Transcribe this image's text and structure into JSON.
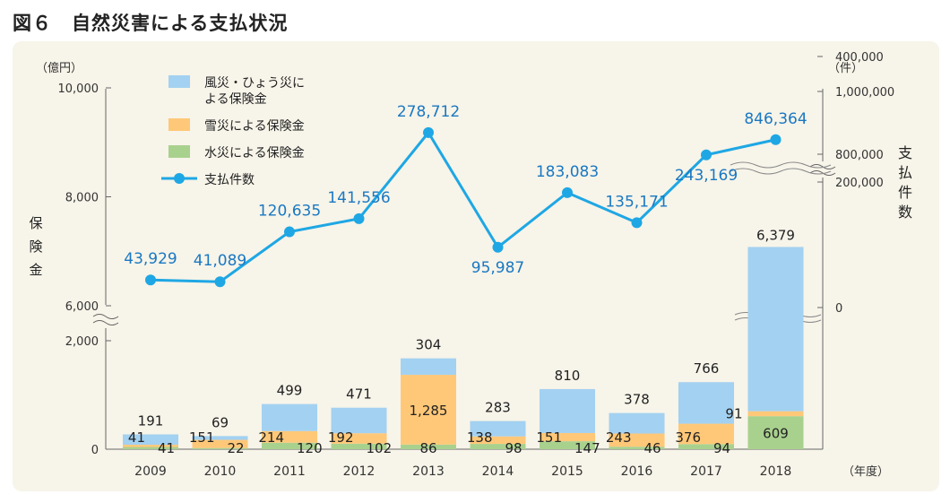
{
  "title": "図６　自然災害による支払状況",
  "chart_data": {
    "type": "bar",
    "categories": [
      "2009",
      "2010",
      "2011",
      "2012",
      "2013",
      "2014",
      "2015",
      "2016",
      "2017",
      "2018"
    ],
    "series": [
      {
        "name": "水災による保険金",
        "type": "bar",
        "color": "#a9d18e",
        "values": [
          41,
          22,
          120,
          102,
          86,
          98,
          147,
          46,
          94,
          609
        ]
      },
      {
        "name": "雪災による保険金",
        "type": "bar",
        "color": "#ffc878",
        "values": [
          41,
          151,
          214,
          192,
          1285,
          138,
          151,
          243,
          376,
          91
        ]
      },
      {
        "name": "風災・ひょう災による保険金",
        "type": "bar",
        "color": "#a3d1f1",
        "values": [
          191,
          69,
          499,
          471,
          304,
          283,
          810,
          378,
          766,
          6379
        ]
      },
      {
        "name": "支払件数",
        "type": "line",
        "color": "#1ea7e4",
        "values": [
          43929,
          41089,
          120635,
          141556,
          278712,
          95987,
          183083,
          135171,
          243169,
          846364
        ]
      }
    ],
    "bar_labels": [
      {
        "blue": "191",
        "orange": "41",
        "green": "41"
      },
      {
        "blue": "69",
        "orange": "151",
        "green": "22"
      },
      {
        "blue": "499",
        "orange": "214",
        "green": "120"
      },
      {
        "blue": "471",
        "orange": "192",
        "green": "102"
      },
      {
        "blue": "304",
        "orange": "1,285",
        "green": "86"
      },
      {
        "blue": "283",
        "orange": "138",
        "green": "98"
      },
      {
        "blue": "810",
        "orange": "151",
        "green": "147"
      },
      {
        "blue": "378",
        "orange": "243",
        "green": "46"
      },
      {
        "blue": "766",
        "orange": "376",
        "green": "94"
      },
      {
        "blue": "6,379",
        "orange": "91",
        "green": "609"
      }
    ],
    "line_labels": [
      "43,929",
      "41,089",
      "120,635",
      "141,556",
      "278,712",
      "95,987",
      "183,083",
      "135,171",
      "243,169",
      "846,364"
    ],
    "left_axis": {
      "label": "保険金",
      "unit": "（億円）",
      "ticks": [
        {
          "value": 0,
          "label": "0"
        },
        {
          "value": 2000,
          "label": "2,000"
        },
        {
          "value": 6000,
          "label": "6,000"
        },
        {
          "value": 8000,
          "label": "8,000"
        },
        {
          "value": 10000,
          "label": "10,000"
        }
      ],
      "break_between": [
        2000,
        6000
      ]
    },
    "right_axis": {
      "label": "支払件数",
      "unit": "（件）",
      "ticks": [
        {
          "value": 0,
          "label": "0"
        },
        {
          "value": 200000,
          "label": "200,000"
        },
        {
          "value": 400000,
          "label": "400,000"
        },
        {
          "value": 800000,
          "label": "800,000"
        },
        {
          "value": 1000000,
          "label": "1,000,000"
        }
      ],
      "break_between": [
        400000,
        800000
      ]
    },
    "x_unit": "（年度）",
    "legend": {
      "items": [
        {
          "label_lines": [
            "風災・ひょう災に",
            "よる保険金"
          ],
          "color": "#a3d1f1",
          "kind": "box"
        },
        {
          "label_lines": [
            "雪災による保険金"
          ],
          "color": "#ffc878",
          "kind": "box"
        },
        {
          "label_lines": [
            "水災による保険金"
          ],
          "color": "#a9d18e",
          "kind": "box"
        },
        {
          "label_lines": [
            "支払件数"
          ],
          "color": "#1ea7e4",
          "kind": "line"
        }
      ],
      "position": "top-left"
    }
  }
}
